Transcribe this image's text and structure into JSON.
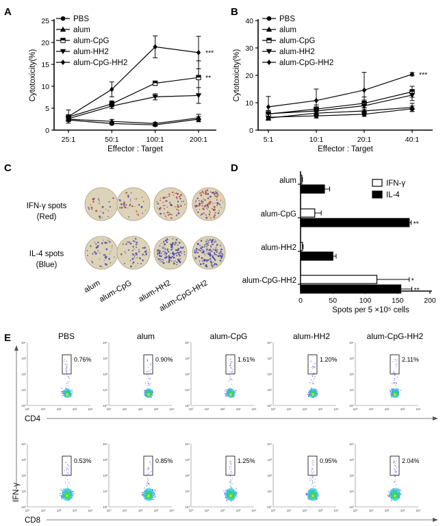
{
  "figure": {
    "panel_labels": [
      "A",
      "B",
      "C",
      "D",
      "E"
    ]
  },
  "colors": {
    "ink": "#000000",
    "well_bg": "#ddd3b8",
    "ifn_spot": "#b8432f",
    "il4_spot": "#4a4aa8",
    "flow_blue": "#2a36d8",
    "flow_core": "#2be25a"
  },
  "chart_data": [
    {
      "id": "A",
      "type": "line",
      "title": "",
      "xlabel": "Effector : Target",
      "ylabel": "Cytotoxicity(%)",
      "categories": [
        "25:1",
        "50:1",
        "100:1",
        "200:1"
      ],
      "ylim": [
        0,
        25
      ],
      "yticks": [
        0,
        5,
        10,
        15,
        20,
        25
      ],
      "series": [
        {
          "name": "PBS",
          "marker": "circle",
          "values": [
            2.3,
            1.5,
            1.2,
            2.5
          ],
          "errors": [
            0.3,
            0.3,
            0.3,
            0.6
          ]
        },
        {
          "name": "alum",
          "marker": "triangle-up",
          "values": [
            2.5,
            2.0,
            1.5,
            2.8
          ],
          "errors": [
            0.4,
            0.4,
            0.3,
            0.8
          ]
        },
        {
          "name": "alum-CpG",
          "marker": "square-half",
          "values": [
            3.0,
            6.0,
            10.7,
            12.0
          ],
          "errors": [
            0.5,
            0.7,
            0.5,
            3.8
          ]
        },
        {
          "name": "alum-HH2",
          "marker": "triangle-down",
          "values": [
            2.6,
            5.5,
            7.6,
            7.9
          ],
          "errors": [
            0.4,
            0.6,
            0.7,
            1.8
          ]
        },
        {
          "name": "alum-CpG-HH2",
          "marker": "diamond",
          "values": [
            3.1,
            9.3,
            19.0,
            17.7
          ],
          "errors": [
            1.5,
            1.7,
            2.5,
            3.7
          ]
        }
      ],
      "annotations": [
        {
          "series": "alum-CpG-HH2",
          "text": "***"
        },
        {
          "series": "alum-CpG",
          "text": "**"
        }
      ]
    },
    {
      "id": "B",
      "type": "line",
      "title": "",
      "xlabel": "Effector : Target",
      "ylabel": "Cytotoxicity(%)",
      "categories": [
        "5:1",
        "10:1",
        "20:1",
        "40:1"
      ],
      "ylim": [
        0,
        40
      ],
      "yticks": [
        0,
        10,
        20,
        30,
        40
      ],
      "series": [
        {
          "name": "PBS",
          "marker": "circle",
          "values": [
            4.7,
            5.2,
            5.8,
            7.8
          ],
          "errors": [
            0.8,
            0.8,
            0.8,
            1.0
          ]
        },
        {
          "name": "alum",
          "marker": "triangle-up",
          "values": [
            4.4,
            6.2,
            7.0,
            8.3
          ],
          "errors": [
            0.8,
            1.0,
            1.2,
            1.5
          ]
        },
        {
          "name": "alum-CpG",
          "marker": "square-half",
          "values": [
            5.9,
            7.7,
            9.8,
            14.0
          ],
          "errors": [
            1.2,
            1.5,
            2.3,
            2.0
          ]
        },
        {
          "name": "alum-HH2",
          "marker": "triangle-down",
          "values": [
            6.0,
            7.0,
            8.9,
            12.8
          ],
          "errors": [
            1.2,
            1.5,
            2.1,
            2.0
          ]
        },
        {
          "name": "alum-CpG-HH2",
          "marker": "diamond",
          "values": [
            8.5,
            10.8,
            14.6,
            20.4
          ],
          "errors": [
            3.8,
            4.2,
            6.5,
            0.6
          ]
        }
      ],
      "annotations": [
        {
          "series": "alum-CpG-HH2",
          "text": "***"
        }
      ]
    },
    {
      "id": "D",
      "type": "bar",
      "orientation": "horizontal",
      "title": "",
      "xlabel": "Spots per 5 ×10⁵ cells",
      "categories": [
        "alum",
        "alum-CpG",
        "alum-HH2",
        "alum-CpG-HH2"
      ],
      "xlim": [
        0,
        200
      ],
      "xticks": [
        0,
        50,
        100,
        150,
        200
      ],
      "series": [
        {
          "name": "IFN-γ",
          "fill": "white",
          "values": [
            2,
            22,
            3,
            118
          ],
          "errors": [
            1,
            10,
            1,
            50
          ]
        },
        {
          "name": "IL-4",
          "fill": "black",
          "values": [
            37,
            168,
            50,
            155
          ],
          "errors": [
            8,
            3,
            5,
            17
          ]
        }
      ],
      "annotations": [
        {
          "category": "alum-CpG",
          "series": "IL-4",
          "text": "**"
        },
        {
          "category": "alum-CpG-HH2",
          "series": "IFN-γ",
          "text": "*"
        },
        {
          "category": "alum-CpG-HH2",
          "series": "IL-4",
          "text": "**"
        }
      ]
    }
  ],
  "panelC": {
    "row_labels": [
      {
        "line1": "IFN-γ spots",
        "line2": "(Red)"
      },
      {
        "line1": "IL-4 spots",
        "line2": "(Blue)"
      }
    ],
    "columns": [
      "alum",
      "alum-CpG",
      "alum-HH2",
      "alum-CpG-HH2"
    ]
  },
  "panelE": {
    "y_axis_label": "IFN-γ",
    "columns": [
      "PBS",
      "alum",
      "alum-CpG",
      "alum-HH2",
      "alum-CpG-HH2"
    ],
    "rows": [
      {
        "axis_label": "CD4",
        "percents": [
          "0.76%",
          "0.90%",
          "1.61%",
          "1.20%",
          "2.11%"
        ]
      },
      {
        "axis_label": "CD8",
        "percents": [
          "0.53%",
          "0.85%",
          "1.25%",
          "0.95%",
          "2.04%"
        ]
      }
    ],
    "tick_labels": [
      "10⁰",
      "10¹",
      "10²",
      "10³",
      "10⁴"
    ]
  }
}
